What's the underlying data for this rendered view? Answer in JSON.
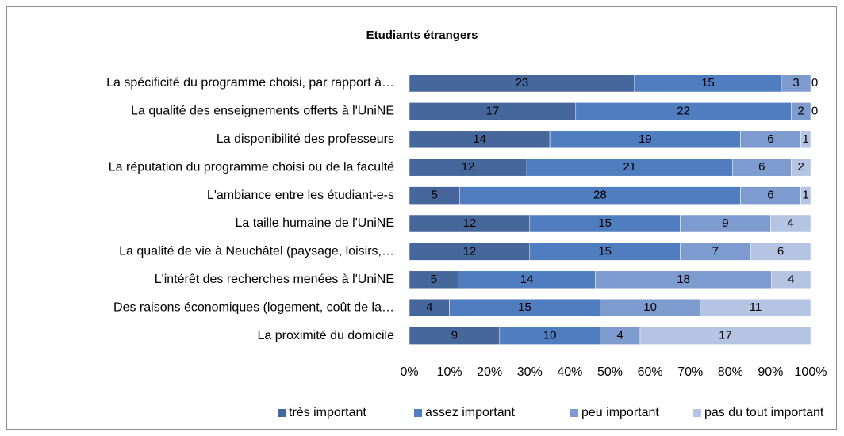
{
  "chart_data": {
    "type": "stacked100_barh",
    "title": "Etudiants étrangers",
    "categories": [
      "La spécificité du programme choisi, par rapport à…",
      "La qualité des enseignements offerts à l'UniNE",
      "La disponibilité des professeurs",
      "La réputation du programme choisi ou de la faculté",
      "L'ambiance entre les étudiant-e-s",
      "La taille humaine de l'UniNE",
      "La qualité de vie à Neuchâtel (paysage, loisirs,…",
      "L'intérêt des recherches menées à l'UniNE",
      "Des raisons économiques (logement, coût de la…",
      "La proximité du domicile"
    ],
    "series": [
      {
        "name": "très important",
        "color": "#46679b",
        "values": [
          23,
          17,
          14,
          12,
          5,
          12,
          12,
          5,
          4,
          9
        ]
      },
      {
        "name": "assez important",
        "color": "#4f7dbf",
        "values": [
          15,
          22,
          19,
          21,
          28,
          15,
          15,
          14,
          15,
          10
        ]
      },
      {
        "name": "peu important",
        "color": "#7d9bcf",
        "values": [
          3,
          2,
          6,
          6,
          6,
          9,
          7,
          18,
          10,
          4
        ]
      },
      {
        "name": "pas du tout important",
        "color": "#b4c4e2",
        "values": [
          0,
          0,
          1,
          2,
          1,
          4,
          6,
          4,
          11,
          17
        ]
      }
    ],
    "xlim": [
      0,
      100
    ],
    "xticks": [
      {
        "value": 0,
        "label": "0%"
      },
      {
        "value": 10,
        "label": "10%"
      },
      {
        "value": 20,
        "label": "20%"
      },
      {
        "value": 30,
        "label": "30%"
      },
      {
        "value": 40,
        "label": "40%"
      },
      {
        "value": 50,
        "label": "50%"
      },
      {
        "value": 60,
        "label": "60%"
      },
      {
        "value": 70,
        "label": "70%"
      },
      {
        "value": 80,
        "label": "80%"
      },
      {
        "value": 90,
        "label": "90%"
      },
      {
        "value": 100,
        "label": "100%"
      }
    ],
    "legend": "bottom"
  }
}
